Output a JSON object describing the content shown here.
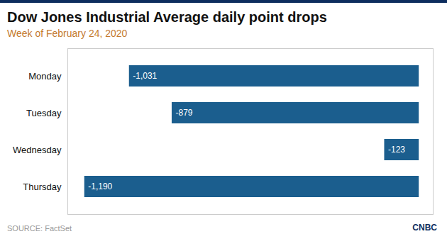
{
  "chart_data": {
    "type": "bar",
    "orientation": "horizontal",
    "title": "Dow Jones Industrial Average daily point drops",
    "subtitle": "Week of February 24, 2020",
    "source": "SOURCE: FactSet",
    "annotations": [
      "CNBC"
    ],
    "categories": [
      "Monday",
      "Tuesday",
      "Wednesday",
      "Thursday"
    ],
    "values": [
      -1031,
      -879,
      -123,
      -1190
    ],
    "value_labels": [
      "-1,031",
      "-879",
      "-123",
      "-1,190"
    ],
    "data_labels": true,
    "color": "#1b5e8e",
    "xlim": [
      -1250,
      50
    ],
    "tick_labels": "y",
    "grid": false
  }
}
